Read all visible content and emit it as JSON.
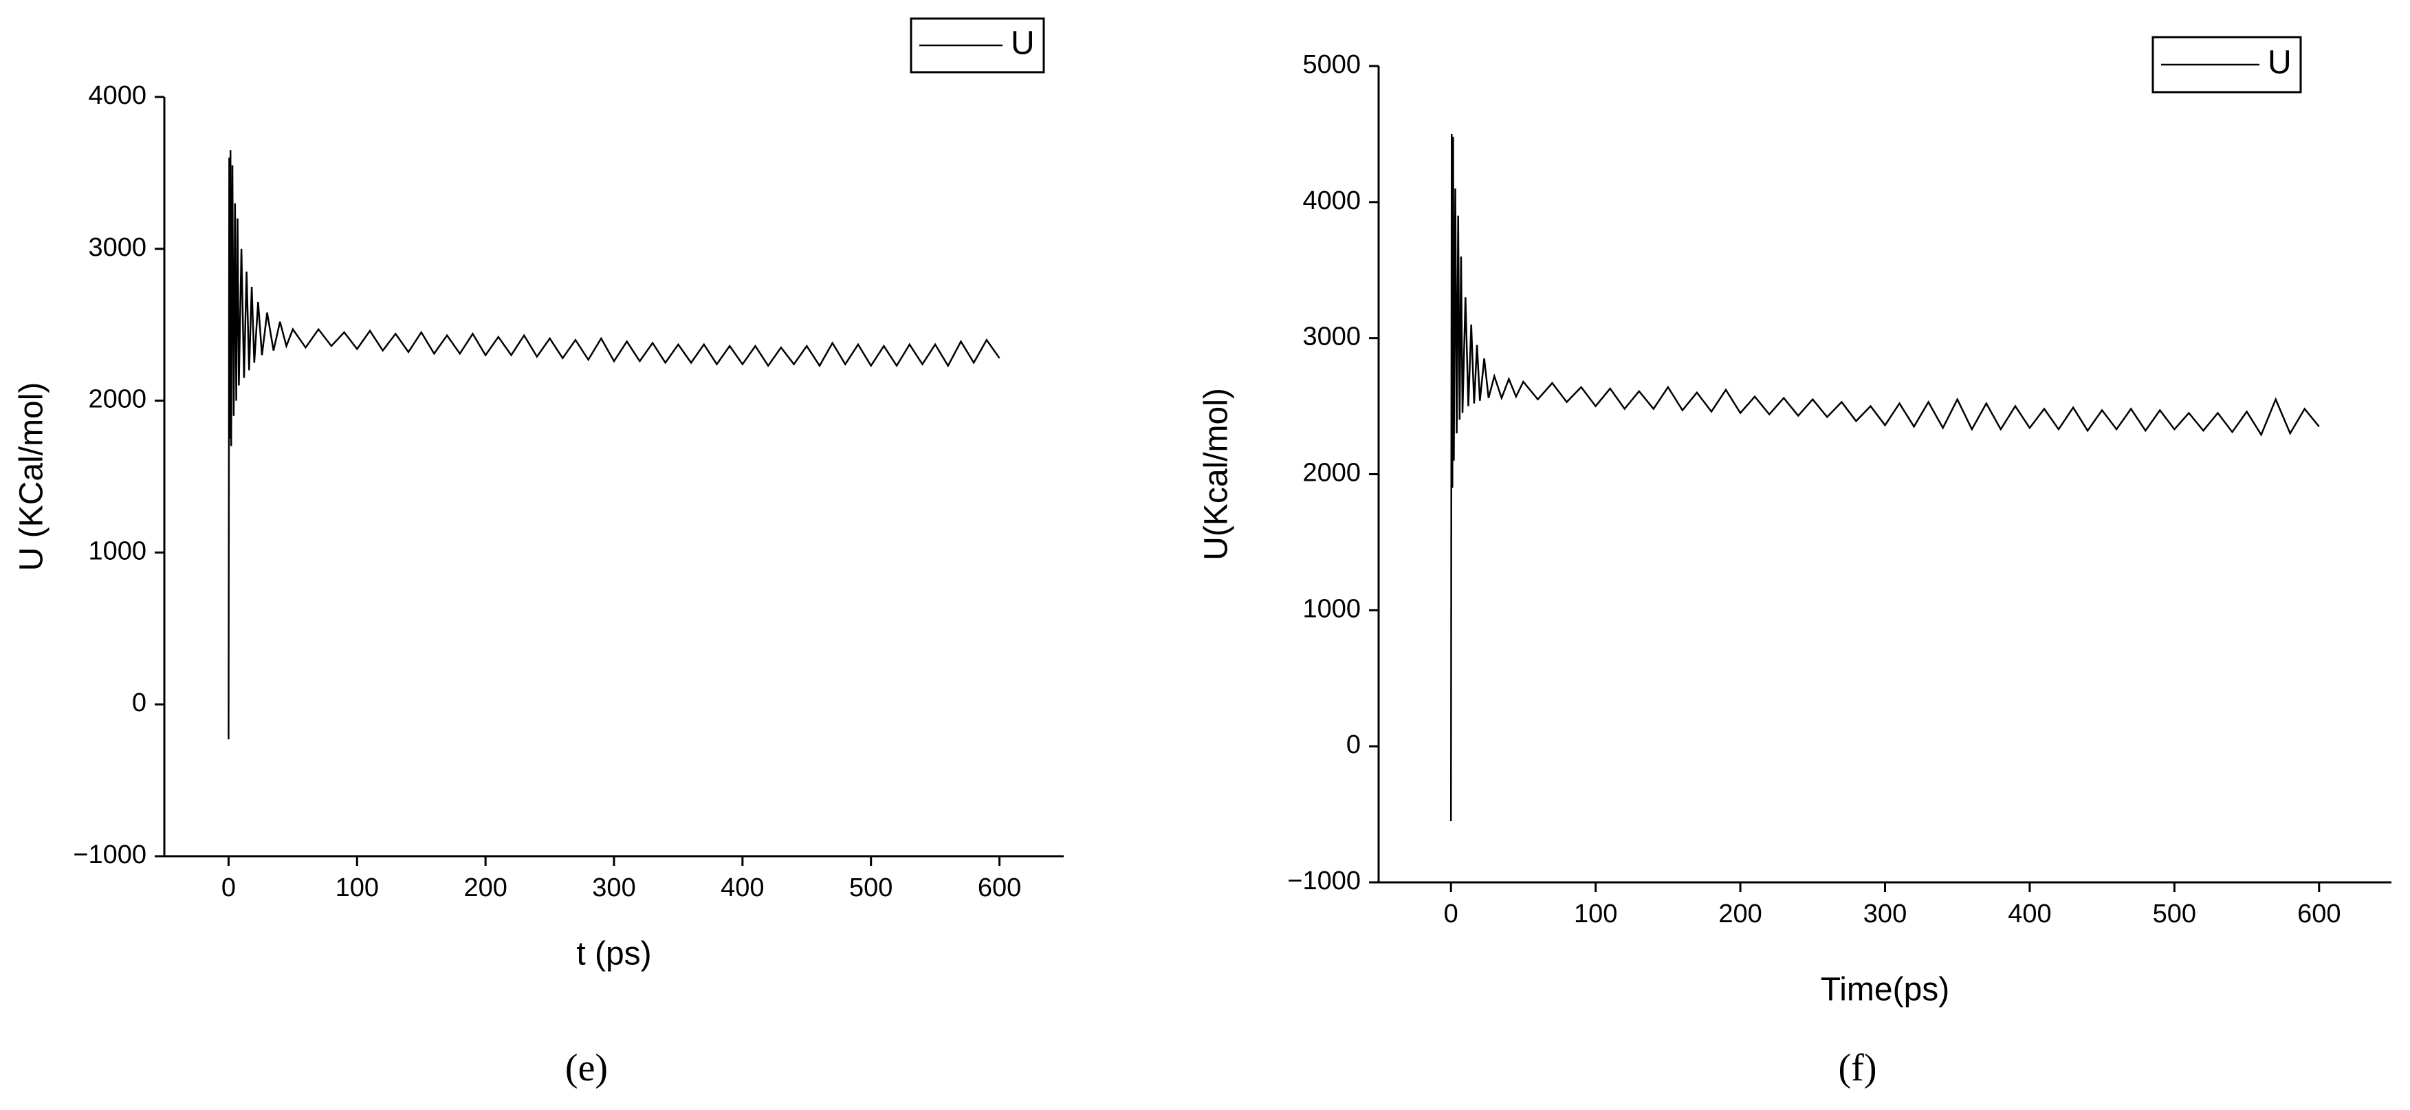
{
  "chart_data": [
    {
      "type": "line",
      "caption": "(e)",
      "xlabel": "t (ps)",
      "ylabel": "U (KCal/mol)",
      "x": [
        0,
        0.5,
        1,
        1.5,
        2,
        3,
        4,
        5,
        6,
        7,
        8,
        10,
        12,
        14,
        16,
        18,
        20,
        23,
        26,
        30,
        35,
        40,
        45,
        50,
        60,
        70,
        80,
        90,
        100,
        110,
        120,
        130,
        140,
        150,
        160,
        170,
        180,
        190,
        200,
        210,
        220,
        230,
        240,
        250,
        260,
        270,
        280,
        290,
        300,
        310,
        320,
        330,
        340,
        350,
        360,
        370,
        380,
        390,
        400,
        410,
        420,
        430,
        440,
        450,
        460,
        470,
        480,
        490,
        500,
        510,
        520,
        530,
        540,
        550,
        560,
        570,
        580,
        590,
        600
      ],
      "series": [
        {
          "name": "U",
          "color": "#000000",
          "values": [
            -230,
            3600,
            1750,
            3650,
            1700,
            3550,
            1900,
            3300,
            2000,
            3200,
            2100,
            3000,
            2150,
            2850,
            2200,
            2750,
            2250,
            2650,
            2300,
            2580,
            2330,
            2520,
            2360,
            2470,
            2350,
            2470,
            2360,
            2450,
            2340,
            2460,
            2330,
            2440,
            2320,
            2450,
            2310,
            2430,
            2310,
            2440,
            2300,
            2420,
            2300,
            2430,
            2290,
            2410,
            2280,
            2400,
            2270,
            2410,
            2260,
            2390,
            2260,
            2380,
            2250,
            2370,
            2250,
            2370,
            2240,
            2360,
            2240,
            2360,
            2230,
            2350,
            2240,
            2360,
            2230,
            2380,
            2240,
            2370,
            2230,
            2360,
            2230,
            2370,
            2240,
            2370,
            2230,
            2390,
            2250,
            2400,
            2280
          ]
        }
      ],
      "xlim": [
        -50,
        650
      ],
      "xticks": [
        0,
        100,
        200,
        300,
        400,
        500,
        600
      ],
      "ylim": [
        -1000,
        4000
      ],
      "yticks": [
        {
          "value": -1000,
          "label": "−1000"
        },
        0,
        1000,
        2000,
        3000,
        4000
      ],
      "legend": "upper right"
    },
    {
      "type": "line",
      "caption": "(f)",
      "xlabel": "Time(ps)",
      "ylabel": "U(Kcal/mol)",
      "x": [
        0,
        0.5,
        1,
        1.5,
        2,
        3,
        4,
        5,
        6,
        7,
        8,
        10,
        12,
        14,
        16,
        18,
        20,
        23,
        26,
        30,
        35,
        40,
        45,
        50,
        60,
        70,
        80,
        90,
        100,
        110,
        120,
        130,
        140,
        150,
        160,
        170,
        180,
        190,
        200,
        210,
        220,
        230,
        240,
        250,
        260,
        270,
        280,
        290,
        300,
        310,
        320,
        330,
        340,
        350,
        360,
        370,
        380,
        390,
        400,
        410,
        420,
        430,
        440,
        450,
        460,
        470,
        480,
        490,
        500,
        510,
        520,
        530,
        540,
        550,
        560,
        570,
        580,
        590,
        600
      ],
      "series": [
        {
          "name": "U",
          "color": "#000000",
          "values": [
            -550,
            4500,
            1900,
            4480,
            2100,
            4100,
            2300,
            3900,
            2400,
            3600,
            2450,
            3300,
            2500,
            3100,
            2520,
            2950,
            2540,
            2850,
            2560,
            2720,
            2560,
            2700,
            2570,
            2680,
            2550,
            2670,
            2530,
            2640,
            2500,
            2630,
            2480,
            2610,
            2480,
            2640,
            2470,
            2600,
            2460,
            2620,
            2450,
            2570,
            2440,
            2560,
            2430,
            2550,
            2420,
            2530,
            2390,
            2500,
            2360,
            2520,
            2350,
            2530,
            2340,
            2550,
            2330,
            2520,
            2330,
            2500,
            2340,
            2480,
            2330,
            2490,
            2320,
            2470,
            2330,
            2480,
            2320,
            2470,
            2330,
            2450,
            2320,
            2450,
            2310,
            2460,
            2290,
            2550,
            2300,
            2480,
            2350
          ]
        }
      ],
      "xlim": [
        -50,
        650
      ],
      "xticks": [
        0,
        100,
        200,
        300,
        400,
        500,
        600
      ],
      "ylim": [
        -1000,
        5000
      ],
      "yticks": [
        {
          "value": -1000,
          "label": "−1000"
        },
        0,
        1000,
        2000,
        3000,
        4000,
        5000
      ],
      "legend": "upper right"
    }
  ]
}
